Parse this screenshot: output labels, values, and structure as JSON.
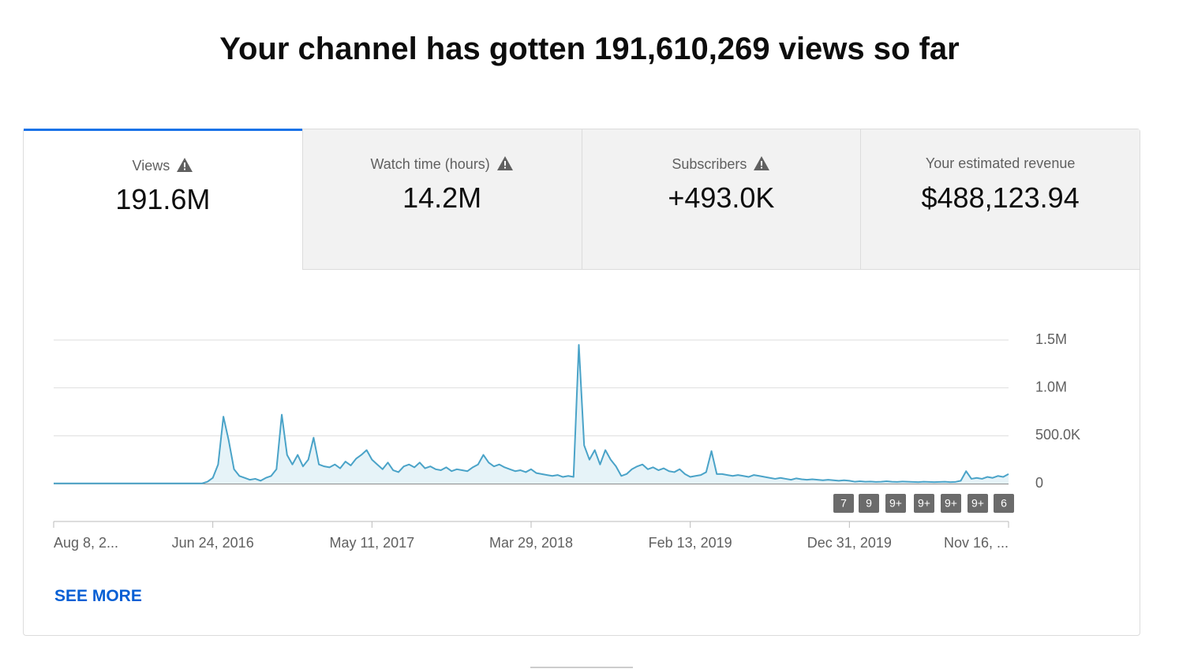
{
  "header": {
    "title": "Your channel has gotten 191,610,269 views so far"
  },
  "tabs": [
    {
      "label": "Views",
      "value": "191.6M",
      "warning": true,
      "selected": true
    },
    {
      "label": "Watch time (hours)",
      "value": "14.2M",
      "warning": true,
      "selected": false
    },
    {
      "label": "Subscribers",
      "value": "+493.0K",
      "warning": true,
      "selected": false
    },
    {
      "label": "Your estimated revenue",
      "value": "$488,123.94",
      "warning": false,
      "selected": false
    }
  ],
  "chart_data": {
    "type": "line",
    "color": "#4aa3c8",
    "fill": "#e6f3f8",
    "categories": [
      "Aug 8, 2...",
      null,
      null,
      null,
      null,
      null,
      null,
      null,
      null,
      null,
      null,
      null,
      null,
      null,
      null,
      null,
      null,
      null,
      null,
      null,
      null,
      null,
      null,
      null,
      null,
      null,
      null,
      null,
      null,
      null,
      "Jun 24, 2016",
      null,
      null,
      null,
      null,
      null,
      null,
      null,
      null,
      null,
      null,
      null,
      null,
      null,
      null,
      null,
      null,
      null,
      null,
      null,
      null,
      null,
      null,
      null,
      null,
      null,
      null,
      null,
      null,
      null,
      "May 11, 2017",
      null,
      null,
      null,
      null,
      null,
      null,
      null,
      null,
      null,
      null,
      null,
      null,
      null,
      null,
      null,
      null,
      null,
      null,
      null,
      null,
      null,
      null,
      null,
      null,
      null,
      null,
      null,
      null,
      null,
      "Mar 29, 2018",
      null,
      null,
      null,
      null,
      null,
      null,
      null,
      null,
      null,
      null,
      null,
      null,
      null,
      null,
      null,
      null,
      null,
      null,
      null,
      null,
      null,
      null,
      null,
      null,
      null,
      null,
      null,
      null,
      null,
      "Feb 13, 2019",
      null,
      null,
      null,
      null,
      null,
      null,
      null,
      null,
      null,
      null,
      null,
      null,
      null,
      null,
      null,
      null,
      null,
      null,
      null,
      null,
      null,
      null,
      null,
      null,
      null,
      null,
      null,
      null,
      null,
      "Dec 31, 2019",
      null,
      null,
      null,
      null,
      null,
      null,
      null,
      null,
      null,
      null,
      null,
      null,
      null,
      null,
      null,
      null,
      null,
      null,
      null,
      null,
      null,
      null,
      null,
      null,
      null,
      null,
      null,
      null,
      null,
      "Nov 16, ..."
    ],
    "values": [
      2000,
      2000,
      2000,
      2000,
      2000,
      2000,
      2000,
      2000,
      2000,
      2000,
      2000,
      2000,
      2000,
      2000,
      2000,
      2000,
      2000,
      2000,
      2000,
      2000,
      2000,
      2000,
      2000,
      2000,
      2000,
      2000,
      2000,
      2000,
      2000,
      20000,
      60000,
      200000,
      700000,
      450000,
      150000,
      80000,
      60000,
      40000,
      50000,
      30000,
      60000,
      80000,
      150000,
      720000,
      300000,
      200000,
      300000,
      180000,
      250000,
      480000,
      200000,
      180000,
      170000,
      200000,
      160000,
      230000,
      190000,
      260000,
      300000,
      350000,
      250000,
      200000,
      150000,
      220000,
      140000,
      120000,
      180000,
      200000,
      170000,
      220000,
      160000,
      180000,
      150000,
      140000,
      170000,
      130000,
      150000,
      140000,
      130000,
      170000,
      200000,
      300000,
      220000,
      180000,
      200000,
      170000,
      150000,
      130000,
      140000,
      120000,
      150000,
      110000,
      100000,
      90000,
      80000,
      90000,
      70000,
      80000,
      70000,
      1450000,
      400000,
      250000,
      350000,
      200000,
      350000,
      250000,
      180000,
      80000,
      100000,
      150000,
      180000,
      200000,
      150000,
      170000,
      140000,
      160000,
      130000,
      120000,
      150000,
      100000,
      70000,
      80000,
      90000,
      120000,
      340000,
      100000,
      100000,
      90000,
      80000,
      90000,
      80000,
      70000,
      90000,
      80000,
      70000,
      60000,
      50000,
      60000,
      50000,
      40000,
      55000,
      45000,
      40000,
      45000,
      40000,
      35000,
      40000,
      35000,
      30000,
      35000,
      30000,
      20000,
      25000,
      20000,
      22000,
      18000,
      20000,
      25000,
      20000,
      18000,
      22000,
      20000,
      18000,
      15000,
      20000,
      18000,
      15000,
      18000,
      20000,
      15000,
      18000,
      30000,
      130000,
      50000,
      60000,
      50000,
      70000,
      60000,
      80000,
      70000,
      100000
    ],
    "ylim": [
      0,
      1500000
    ],
    "yticks": [
      0,
      {
        "value": 500000,
        "label": "500.0K"
      },
      {
        "value": 1000000,
        "label": "1.0M"
      },
      {
        "value": 1500000,
        "label": "1.5M"
      }
    ],
    "grid": true,
    "annotations": [
      "7",
      "9",
      "9+",
      "9+",
      "9+",
      "9+",
      "6"
    ]
  },
  "see_more": "SEE MORE"
}
